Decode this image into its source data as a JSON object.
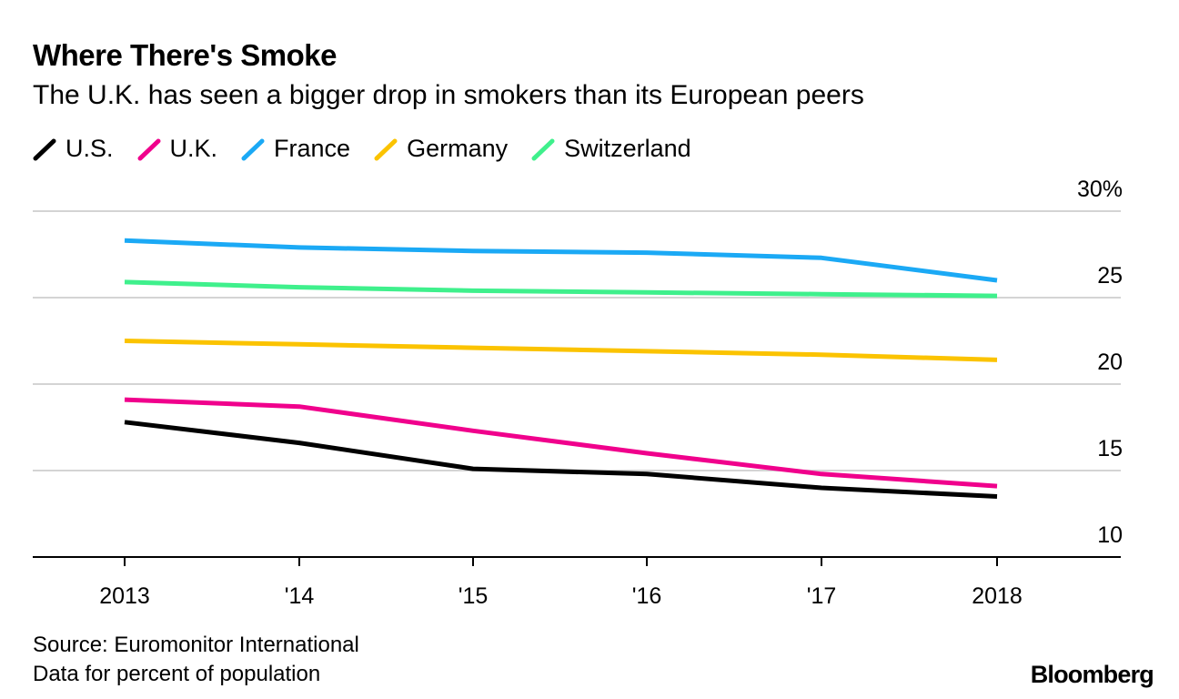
{
  "header": {
    "title": "Where There's Smoke",
    "subtitle": "The U.K. has seen a bigger drop in smokers than its European peers"
  },
  "footer": {
    "source": "Source: Euromonitor International",
    "note": "Data for percent of population",
    "brand": "Bloomberg"
  },
  "chart_data": {
    "type": "line",
    "title": "Where There's Smoke",
    "subtitle": "The U.K. has seen a bigger drop in smokers than its European peers",
    "x": [
      2013,
      2014,
      2015,
      2016,
      2017,
      2018
    ],
    "x_tick_labels": [
      "2013",
      "'14",
      "'15",
      "'16",
      "'17",
      "2018"
    ],
    "y_tick_values": [
      10,
      15,
      20,
      25,
      30
    ],
    "y_tick_labels": [
      "10",
      "15",
      "20",
      "25",
      "30%"
    ],
    "ylim": [
      10,
      30
    ],
    "xlim": [
      2012.5,
      2018.7
    ],
    "grid": true,
    "legend_position": "top-left",
    "series": [
      {
        "name": "U.S.",
        "color": "#000000",
        "values": [
          17.8,
          16.6,
          15.1,
          14.8,
          14.0,
          13.5
        ]
      },
      {
        "name": "U.K.",
        "color": "#f0008c",
        "values": [
          19.1,
          18.7,
          17.3,
          16.0,
          14.8,
          14.1
        ]
      },
      {
        "name": "France",
        "color": "#1ba9f5",
        "values": [
          28.3,
          27.9,
          27.7,
          27.6,
          27.3,
          26.0
        ]
      },
      {
        "name": "Germany",
        "color": "#fbc300",
        "values": [
          22.5,
          22.3,
          22.1,
          21.9,
          21.7,
          21.4
        ]
      },
      {
        "name": "Switzerland",
        "color": "#3ff08c",
        "values": [
          25.9,
          25.6,
          25.4,
          25.3,
          25.2,
          25.1
        ]
      }
    ]
  }
}
